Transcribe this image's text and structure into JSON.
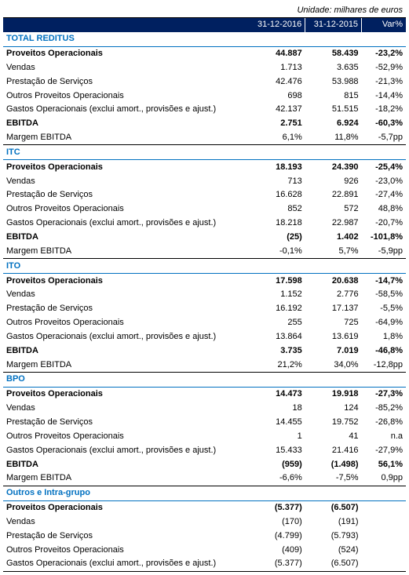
{
  "unit_label": "Unidade: milhares de euros",
  "columns": {
    "c2016": "31-12-2016",
    "c2015": "31-12-2015",
    "var": "Var%"
  },
  "sections": [
    {
      "title": "TOTAL REDITUS",
      "rows": [
        {
          "label": "Proveitos Operacionais",
          "v2016": "44.887",
          "v2015": "58.439",
          "var": "-23,2%",
          "bold": true
        },
        {
          "label": "Vendas",
          "v2016": "1.713",
          "v2015": "3.635",
          "var": "-52,9%"
        },
        {
          "label": "Prestação de Serviços",
          "v2016": "42.476",
          "v2015": "53.988",
          "var": "-21,3%"
        },
        {
          "label": "Outros Proveitos Operacionais",
          "v2016": "698",
          "v2015": "815",
          "var": "-14,4%"
        },
        {
          "label": "Gastos Operacionais (exclui amort., provisões e ajust.)",
          "v2016": "42.137",
          "v2015": "51.515",
          "var": "-18,2%"
        },
        {
          "label": "EBITDA",
          "v2016": "2.751",
          "v2015": "6.924",
          "var": "-60,3%",
          "bold": true
        },
        {
          "label": "Margem EBITDA",
          "v2016": "6,1%",
          "v2015": "11,8%",
          "var": "-5,7pp",
          "bottom": true
        }
      ]
    },
    {
      "title": "ITC",
      "rows": [
        {
          "label": "Proveitos Operacionais",
          "v2016": "18.193",
          "v2015": "24.390",
          "var": "-25,4%",
          "bold": true
        },
        {
          "label": "Vendas",
          "v2016": "713",
          "v2015": "926",
          "var": "-23,0%"
        },
        {
          "label": "Prestação de Serviços",
          "v2016": "16.628",
          "v2015": "22.891",
          "var": "-27,4%"
        },
        {
          "label": "Outros Proveitos Operacionais",
          "v2016": "852",
          "v2015": "572",
          "var": "48,8%"
        },
        {
          "label": "Gastos Operacionais (exclui amort., provisões e ajust.)",
          "v2016": "18.218",
          "v2015": "22.987",
          "var": "-20,7%"
        },
        {
          "label": "EBITDA",
          "v2016": "(25)",
          "v2015": "1.402",
          "var": "-101,8%",
          "bold": true
        },
        {
          "label": "Margem EBITDA",
          "v2016": "-0,1%",
          "v2015": "5,7%",
          "var": "-5,9pp",
          "bottom": true
        }
      ]
    },
    {
      "title": "ITO",
      "rows": [
        {
          "label": "Proveitos Operacionais",
          "v2016": "17.598",
          "v2015": "20.638",
          "var": "-14,7%",
          "bold": true
        },
        {
          "label": "Vendas",
          "v2016": "1.152",
          "v2015": "2.776",
          "var": "-58,5%"
        },
        {
          "label": "Prestação de Serviços",
          "v2016": "16.192",
          "v2015": "17.137",
          "var": "-5,5%"
        },
        {
          "label": "Outros Proveitos Operacionais",
          "v2016": "255",
          "v2015": "725",
          "var": "-64,9%"
        },
        {
          "label": "Gastos Operacionais (exclui amort., provisões e ajust.)",
          "v2016": "13.864",
          "v2015": "13.619",
          "var": "1,8%"
        },
        {
          "label": "EBITDA",
          "v2016": "3.735",
          "v2015": "7.019",
          "var": "-46,8%",
          "bold": true
        },
        {
          "label": "Margem EBITDA",
          "v2016": "21,2%",
          "v2015": "34,0%",
          "var": "-12,8pp",
          "bottom": true
        }
      ]
    },
    {
      "title": "BPO",
      "rows": [
        {
          "label": "Proveitos Operacionais",
          "v2016": "14.473",
          "v2015": "19.918",
          "var": "-27,3%",
          "bold": true
        },
        {
          "label": "Vendas",
          "v2016": "18",
          "v2015": "124",
          "var": "-85,2%"
        },
        {
          "label": "Prestação de Serviços",
          "v2016": "14.455",
          "v2015": "19.752",
          "var": "-26,8%"
        },
        {
          "label": "Outros Proveitos Operacionais",
          "v2016": "1",
          "v2015": "41",
          "var": "n.a"
        },
        {
          "label": "Gastos Operacionais (exclui amort., provisões e ajust.)",
          "v2016": "15.433",
          "v2015": "21.416",
          "var": "-27,9%"
        },
        {
          "label": "EBITDA",
          "v2016": "(959)",
          "v2015": "(1.498)",
          "var": "56,1%",
          "bold": true
        },
        {
          "label": "Margem EBITDA",
          "v2016": "-6,6%",
          "v2015": "-7,5%",
          "var": "0,9pp",
          "bottom": true
        }
      ]
    },
    {
      "title": "Outros e Intra-grupo",
      "rows": [
        {
          "label": "Proveitos Operacionais",
          "v2016": "(5.377)",
          "v2015": "(6.507)",
          "var": "",
          "bold": true
        },
        {
          "label": "Vendas",
          "v2016": "(170)",
          "v2015": "(191)",
          "var": ""
        },
        {
          "label": "Prestação de Serviços",
          "v2016": "(4.799)",
          "v2015": "(5.793)",
          "var": ""
        },
        {
          "label": "Outros Proveitos Operacionais",
          "v2016": "(409)",
          "v2015": "(524)",
          "var": ""
        },
        {
          "label": "Gastos Operacionais (exclui amort., provisões e ajust.)",
          "v2016": "(5.377)",
          "v2015": "(6.507)",
          "var": "",
          "bottom": true
        }
      ]
    }
  ]
}
